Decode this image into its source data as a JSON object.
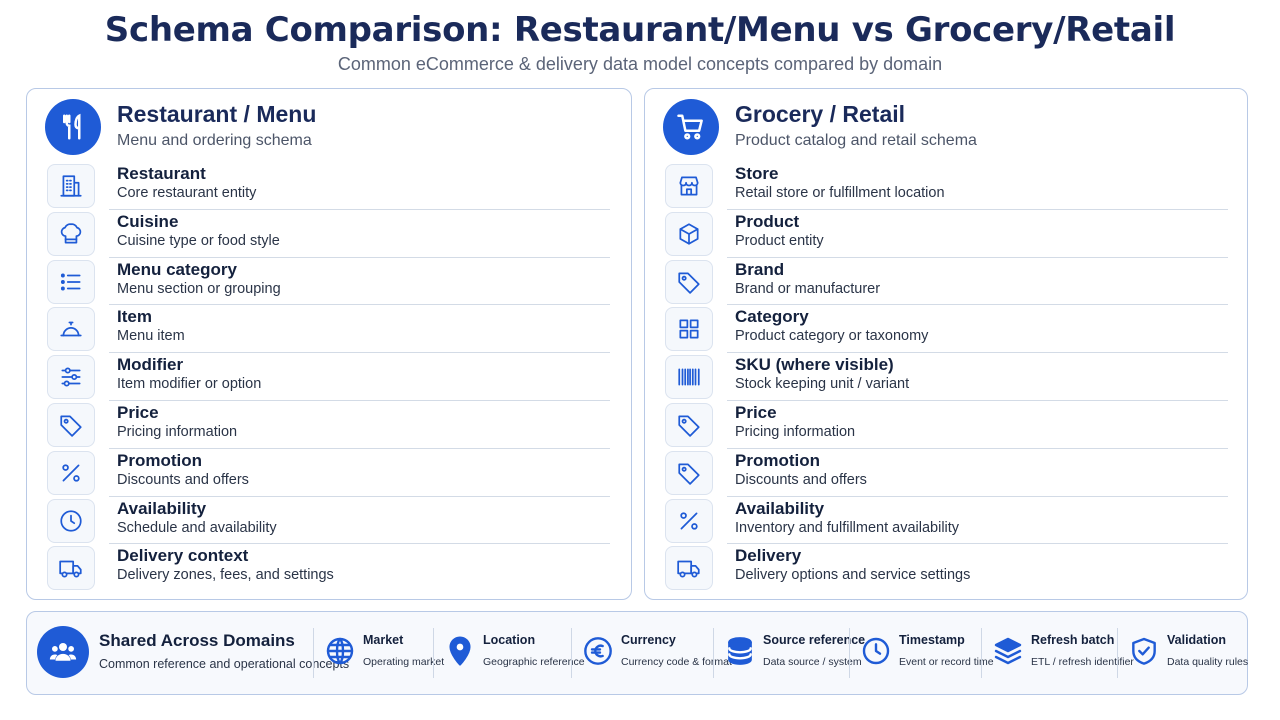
{
  "header": {
    "title": "Schema Comparison: Restaurant/Menu vs Grocery/Retail",
    "subtitle": "Common eCommerce & delivery data model concepts compared by domain"
  },
  "colors": {
    "accent": "#1f5bd6",
    "title": "#1a2a5a",
    "border": "#b8c9e6"
  },
  "restaurant": {
    "title": "Restaurant / Menu",
    "subtitle": "Menu and ordering schema",
    "icon": "fork-knife-icon",
    "items": [
      {
        "title": "Restaurant",
        "desc": "Core restaurant entity",
        "icon": "building-icon"
      },
      {
        "title": "Cuisine",
        "desc": "Cuisine type or food style",
        "icon": "chef-hat-icon"
      },
      {
        "title": "Menu category",
        "desc": "Menu section or grouping",
        "icon": "list-icon"
      },
      {
        "title": "Item",
        "desc": "Menu item",
        "icon": "cloche-icon"
      },
      {
        "title": "Modifier",
        "desc": "Item modifier or option",
        "icon": "sliders-icon"
      },
      {
        "title": "Price",
        "desc": "Pricing information",
        "icon": "tag-icon"
      },
      {
        "title": "Promotion",
        "desc": "Discounts and offers",
        "icon": "percent-icon"
      },
      {
        "title": "Availability",
        "desc": "Schedule and availability",
        "icon": "clock-icon"
      },
      {
        "title": "Delivery context",
        "desc": "Delivery zones, fees, and settings",
        "icon": "truck-icon"
      }
    ]
  },
  "grocery": {
    "title": "Grocery / Retail",
    "subtitle": "Product catalog and retail schema",
    "icon": "shopping-cart-icon",
    "items": [
      {
        "title": "Store",
        "desc": "Retail store or fulfillment location",
        "icon": "storefront-icon"
      },
      {
        "title": "Product",
        "desc": "Product entity",
        "icon": "box-icon"
      },
      {
        "title": "Brand",
        "desc": "Brand or manufacturer",
        "icon": "tag-icon"
      },
      {
        "title": "Category",
        "desc": "Product category or taxonomy",
        "icon": "grid-icon"
      },
      {
        "title": "SKU (where visible)",
        "desc": "Stock keeping unit / variant",
        "icon": "barcode-icon"
      },
      {
        "title": "Price",
        "desc": "Pricing information",
        "icon": "tag-icon"
      },
      {
        "title": "Promotion",
        "desc": "Discounts and offers",
        "icon": "tag-icon"
      },
      {
        "title": "Availability",
        "desc": "Inventory and fulfillment availability",
        "icon": "percent-icon"
      },
      {
        "title": "Delivery",
        "desc": "Delivery options and service settings",
        "icon": "truck-icon"
      }
    ]
  },
  "shared": {
    "title": "Shared Across Domains",
    "subtitle": "Common reference and operational concepts",
    "icon": "users-icon",
    "concepts": [
      {
        "title": "Market",
        "desc": "Operating market",
        "icon": "globe-icon"
      },
      {
        "title": "Location",
        "desc": "Geographic reference",
        "icon": "map-pin-icon"
      },
      {
        "title": "Currency",
        "desc": "Currency code & format",
        "icon": "euro-icon"
      },
      {
        "title": "Source reference",
        "desc": "Data source / system",
        "icon": "database-icon"
      },
      {
        "title": "Timestamp",
        "desc": "Event or record time",
        "icon": "clock-icon"
      },
      {
        "title": "Refresh batch",
        "desc": "ETL / refresh identifier",
        "icon": "layers-icon"
      },
      {
        "title": "Validation",
        "desc": "Data quality rules",
        "icon": "shield-check-icon"
      }
    ]
  }
}
